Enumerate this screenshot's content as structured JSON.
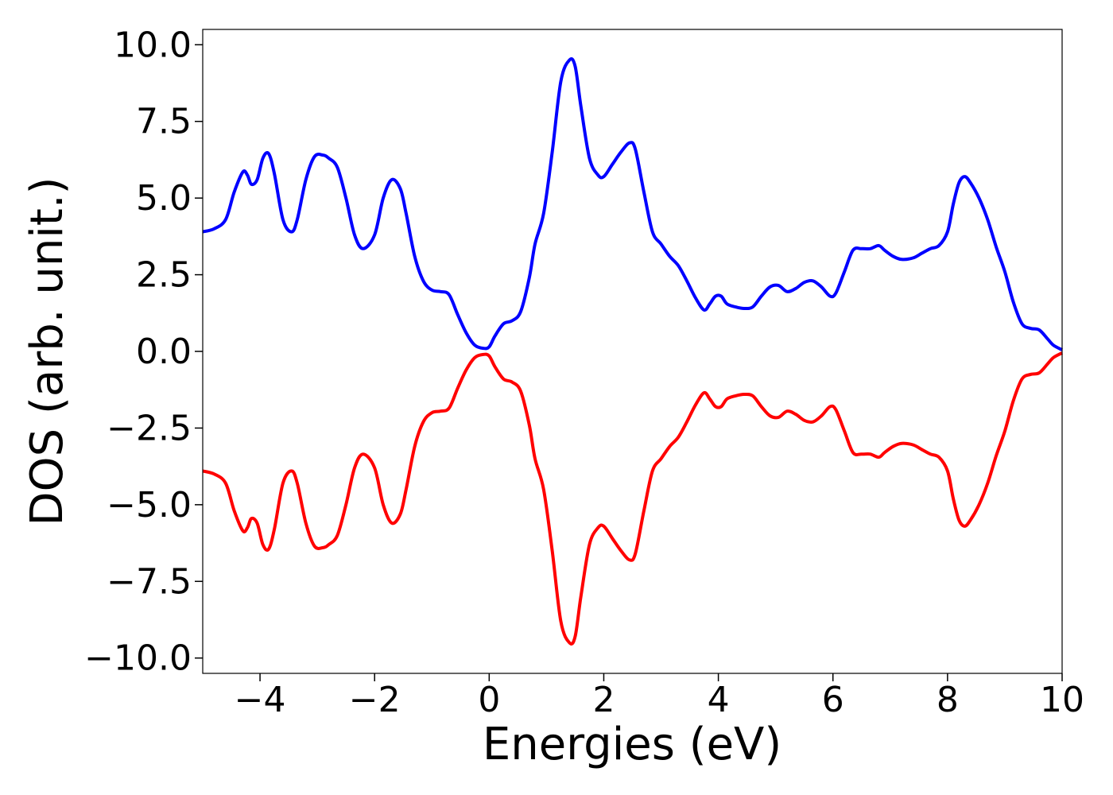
{
  "chart_data": {
    "type": "line",
    "title": "",
    "xlabel": "Energies (eV)",
    "ylabel": "DOS (arb. unit.)",
    "xlim": [
      -5,
      10
    ],
    "ylim": [
      -10.5,
      10.5
    ],
    "grid": false,
    "legend": "none",
    "xticks": [
      -4,
      -2,
      0,
      2,
      4,
      6,
      8,
      10
    ],
    "xtick_labels": [
      "−4",
      "−2",
      "0",
      "2",
      "4",
      "6",
      "8",
      "10"
    ],
    "yticks": [
      10,
      7.5,
      5,
      2.5,
      0,
      -2.5,
      -5,
      -7.5,
      -10
    ],
    "ytick_labels": [
      "10.0",
      "7.5",
      "5.0",
      "2.5",
      "0.0",
      "−2.5",
      "−5.0",
      "−7.5",
      "−10.0"
    ],
    "series": [
      {
        "color": "#0000ff",
        "x": [
          -5.0,
          -4.8,
          -4.6,
          -4.45,
          -4.3,
          -4.22,
          -4.15,
          -4.05,
          -3.95,
          -3.85,
          -3.75,
          -3.6,
          -3.45,
          -3.35,
          -3.2,
          -3.05,
          -2.9,
          -2.8,
          -2.65,
          -2.5,
          -2.35,
          -2.2,
          -2.0,
          -1.85,
          -1.7,
          -1.55,
          -1.45,
          -1.3,
          -1.15,
          -1.0,
          -0.85,
          -0.7,
          -0.55,
          -0.4,
          -0.25,
          -0.1,
          0.0,
          0.1,
          0.25,
          0.4,
          0.55,
          0.7,
          0.8,
          0.95,
          1.1,
          1.25,
          1.4,
          1.5,
          1.6,
          1.75,
          1.9,
          2.0,
          2.15,
          2.3,
          2.45,
          2.55,
          2.7,
          2.85,
          3.0,
          3.15,
          3.3,
          3.45,
          3.6,
          3.75,
          3.85,
          3.95,
          4.05,
          4.15,
          4.3,
          4.45,
          4.6,
          4.75,
          4.9,
          5.05,
          5.2,
          5.35,
          5.5,
          5.65,
          5.8,
          5.95,
          6.05,
          6.2,
          6.35,
          6.5,
          6.65,
          6.8,
          6.9,
          7.05,
          7.2,
          7.4,
          7.55,
          7.7,
          7.85,
          8.0,
          8.1,
          8.2,
          8.3,
          8.4,
          8.55,
          8.7,
          8.85,
          9.0,
          9.15,
          9.3,
          9.45,
          9.6,
          9.75,
          9.85,
          10.0
        ],
        "values": [
          3.9,
          4.0,
          4.3,
          5.2,
          5.85,
          5.75,
          5.45,
          5.6,
          6.3,
          6.45,
          5.8,
          4.3,
          3.9,
          4.3,
          5.6,
          6.35,
          6.4,
          6.3,
          6.0,
          5.0,
          3.8,
          3.35,
          3.8,
          5.0,
          5.6,
          5.3,
          4.5,
          3.1,
          2.3,
          2.0,
          1.95,
          1.85,
          1.2,
          0.6,
          0.2,
          0.1,
          0.15,
          0.5,
          0.9,
          1.0,
          1.3,
          2.4,
          3.5,
          4.5,
          6.5,
          8.8,
          9.5,
          9.3,
          8.0,
          6.3,
          5.75,
          5.7,
          6.1,
          6.5,
          6.8,
          6.6,
          5.2,
          3.9,
          3.5,
          3.1,
          2.8,
          2.3,
          1.75,
          1.35,
          1.55,
          1.8,
          1.8,
          1.55,
          1.45,
          1.4,
          1.45,
          1.8,
          2.1,
          2.15,
          1.95,
          2.05,
          2.25,
          2.3,
          2.1,
          1.8,
          1.9,
          2.6,
          3.3,
          3.35,
          3.35,
          3.45,
          3.3,
          3.1,
          3.0,
          3.05,
          3.2,
          3.35,
          3.45,
          3.9,
          4.8,
          5.5,
          5.7,
          5.5,
          5.0,
          4.3,
          3.4,
          2.6,
          1.6,
          0.9,
          0.75,
          0.7,
          0.4,
          0.2,
          0.05
        ]
      },
      {
        "color": "#ff0000",
        "x": [
          -5.0,
          -4.8,
          -4.6,
          -4.45,
          -4.3,
          -4.22,
          -4.15,
          -4.05,
          -3.95,
          -3.85,
          -3.75,
          -3.6,
          -3.45,
          -3.35,
          -3.2,
          -3.05,
          -2.9,
          -2.8,
          -2.65,
          -2.5,
          -2.35,
          -2.2,
          -2.0,
          -1.85,
          -1.7,
          -1.55,
          -1.45,
          -1.3,
          -1.15,
          -1.0,
          -0.85,
          -0.7,
          -0.55,
          -0.4,
          -0.25,
          -0.1,
          0.0,
          0.1,
          0.25,
          0.4,
          0.55,
          0.7,
          0.8,
          0.95,
          1.1,
          1.25,
          1.4,
          1.5,
          1.6,
          1.75,
          1.9,
          2.0,
          2.15,
          2.3,
          2.45,
          2.55,
          2.7,
          2.85,
          3.0,
          3.15,
          3.3,
          3.45,
          3.6,
          3.75,
          3.85,
          3.95,
          4.05,
          4.15,
          4.3,
          4.45,
          4.6,
          4.75,
          4.9,
          5.05,
          5.2,
          5.35,
          5.5,
          5.65,
          5.8,
          5.95,
          6.05,
          6.2,
          6.35,
          6.5,
          6.65,
          6.8,
          6.9,
          7.05,
          7.2,
          7.4,
          7.55,
          7.7,
          7.85,
          8.0,
          8.1,
          8.2,
          8.3,
          8.4,
          8.55,
          8.7,
          8.85,
          9.0,
          9.15,
          9.3,
          9.45,
          9.6,
          9.75,
          9.85,
          10.0
        ],
        "values": [
          -3.9,
          -4.0,
          -4.3,
          -5.2,
          -5.85,
          -5.75,
          -5.45,
          -5.6,
          -6.3,
          -6.45,
          -5.8,
          -4.3,
          -3.9,
          -4.3,
          -5.6,
          -6.35,
          -6.4,
          -6.3,
          -6.0,
          -5.0,
          -3.8,
          -3.35,
          -3.8,
          -5.0,
          -5.6,
          -5.3,
          -4.5,
          -3.1,
          -2.3,
          -2.0,
          -1.95,
          -1.85,
          -1.2,
          -0.6,
          -0.2,
          -0.1,
          -0.15,
          -0.5,
          -0.9,
          -1.0,
          -1.3,
          -2.4,
          -3.5,
          -4.5,
          -6.5,
          -8.8,
          -9.5,
          -9.3,
          -8.0,
          -6.3,
          -5.75,
          -5.7,
          -6.1,
          -6.5,
          -6.8,
          -6.6,
          -5.2,
          -3.9,
          -3.5,
          -3.1,
          -2.8,
          -2.3,
          -1.75,
          -1.35,
          -1.55,
          -1.8,
          -1.8,
          -1.55,
          -1.45,
          -1.4,
          -1.45,
          -1.8,
          -2.1,
          -2.15,
          -1.95,
          -2.05,
          -2.25,
          -2.3,
          -2.1,
          -1.8,
          -1.9,
          -2.6,
          -3.3,
          -3.35,
          -3.35,
          -3.45,
          -3.3,
          -3.1,
          -3.0,
          -3.05,
          -3.2,
          -3.35,
          -3.45,
          -3.9,
          -4.8,
          -5.5,
          -5.7,
          -5.5,
          -5.0,
          -4.3,
          -3.4,
          -2.6,
          -1.6,
          -0.9,
          -0.75,
          -0.7,
          -0.4,
          -0.2,
          -0.05
        ]
      }
    ]
  }
}
